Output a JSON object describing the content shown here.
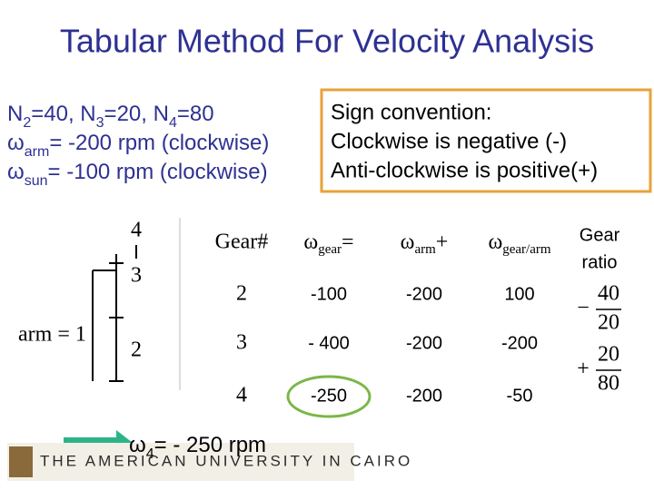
{
  "title": "Tabular Method For Velocity Analysis",
  "givens": [
    [
      "N",
      "2",
      "=40, N",
      "3",
      "=20, N",
      "4",
      "=80"
    ],
    [
      "ω",
      "arm",
      "= -200 rpm (clockwise)"
    ],
    [
      "ω",
      "sun",
      "= -100 rpm (clockwise)"
    ]
  ],
  "sign_convention": [
    "Sign convention:",
    "Clockwise is negative (-)",
    "Anti-clockwise is positive(+)"
  ],
  "diagram": {
    "gear_4": "4",
    "gear_3": "3",
    "arm": "arm = 1",
    "gear_2": "2"
  },
  "table": {
    "header": [
      "Gear#",
      [
        "ω",
        "gear",
        "="
      ],
      [
        "ω",
        "arm",
        "+"
      ],
      [
        "ω",
        "gear/arm"
      ],
      [
        "Gear",
        "ratio"
      ]
    ],
    "rows": [
      [
        "2",
        "-100",
        "-200",
        "100"
      ],
      [
        "3",
        "- 400",
        "-200",
        "-200"
      ],
      [
        "4",
        "-250",
        "-200",
        "-50"
      ]
    ],
    "gear_ratio": [
      {
        "sign": "−",
        "numerator": "40",
        "denominator": "20"
      },
      {
        "sign": "+",
        "numerator": "20",
        "denominator": "80"
      }
    ]
  },
  "result": [
    "ω",
    "4",
    "= - 250 rpm"
  ],
  "logo": "THE AMERICAN UNIVERSITY IN CAIRO"
}
